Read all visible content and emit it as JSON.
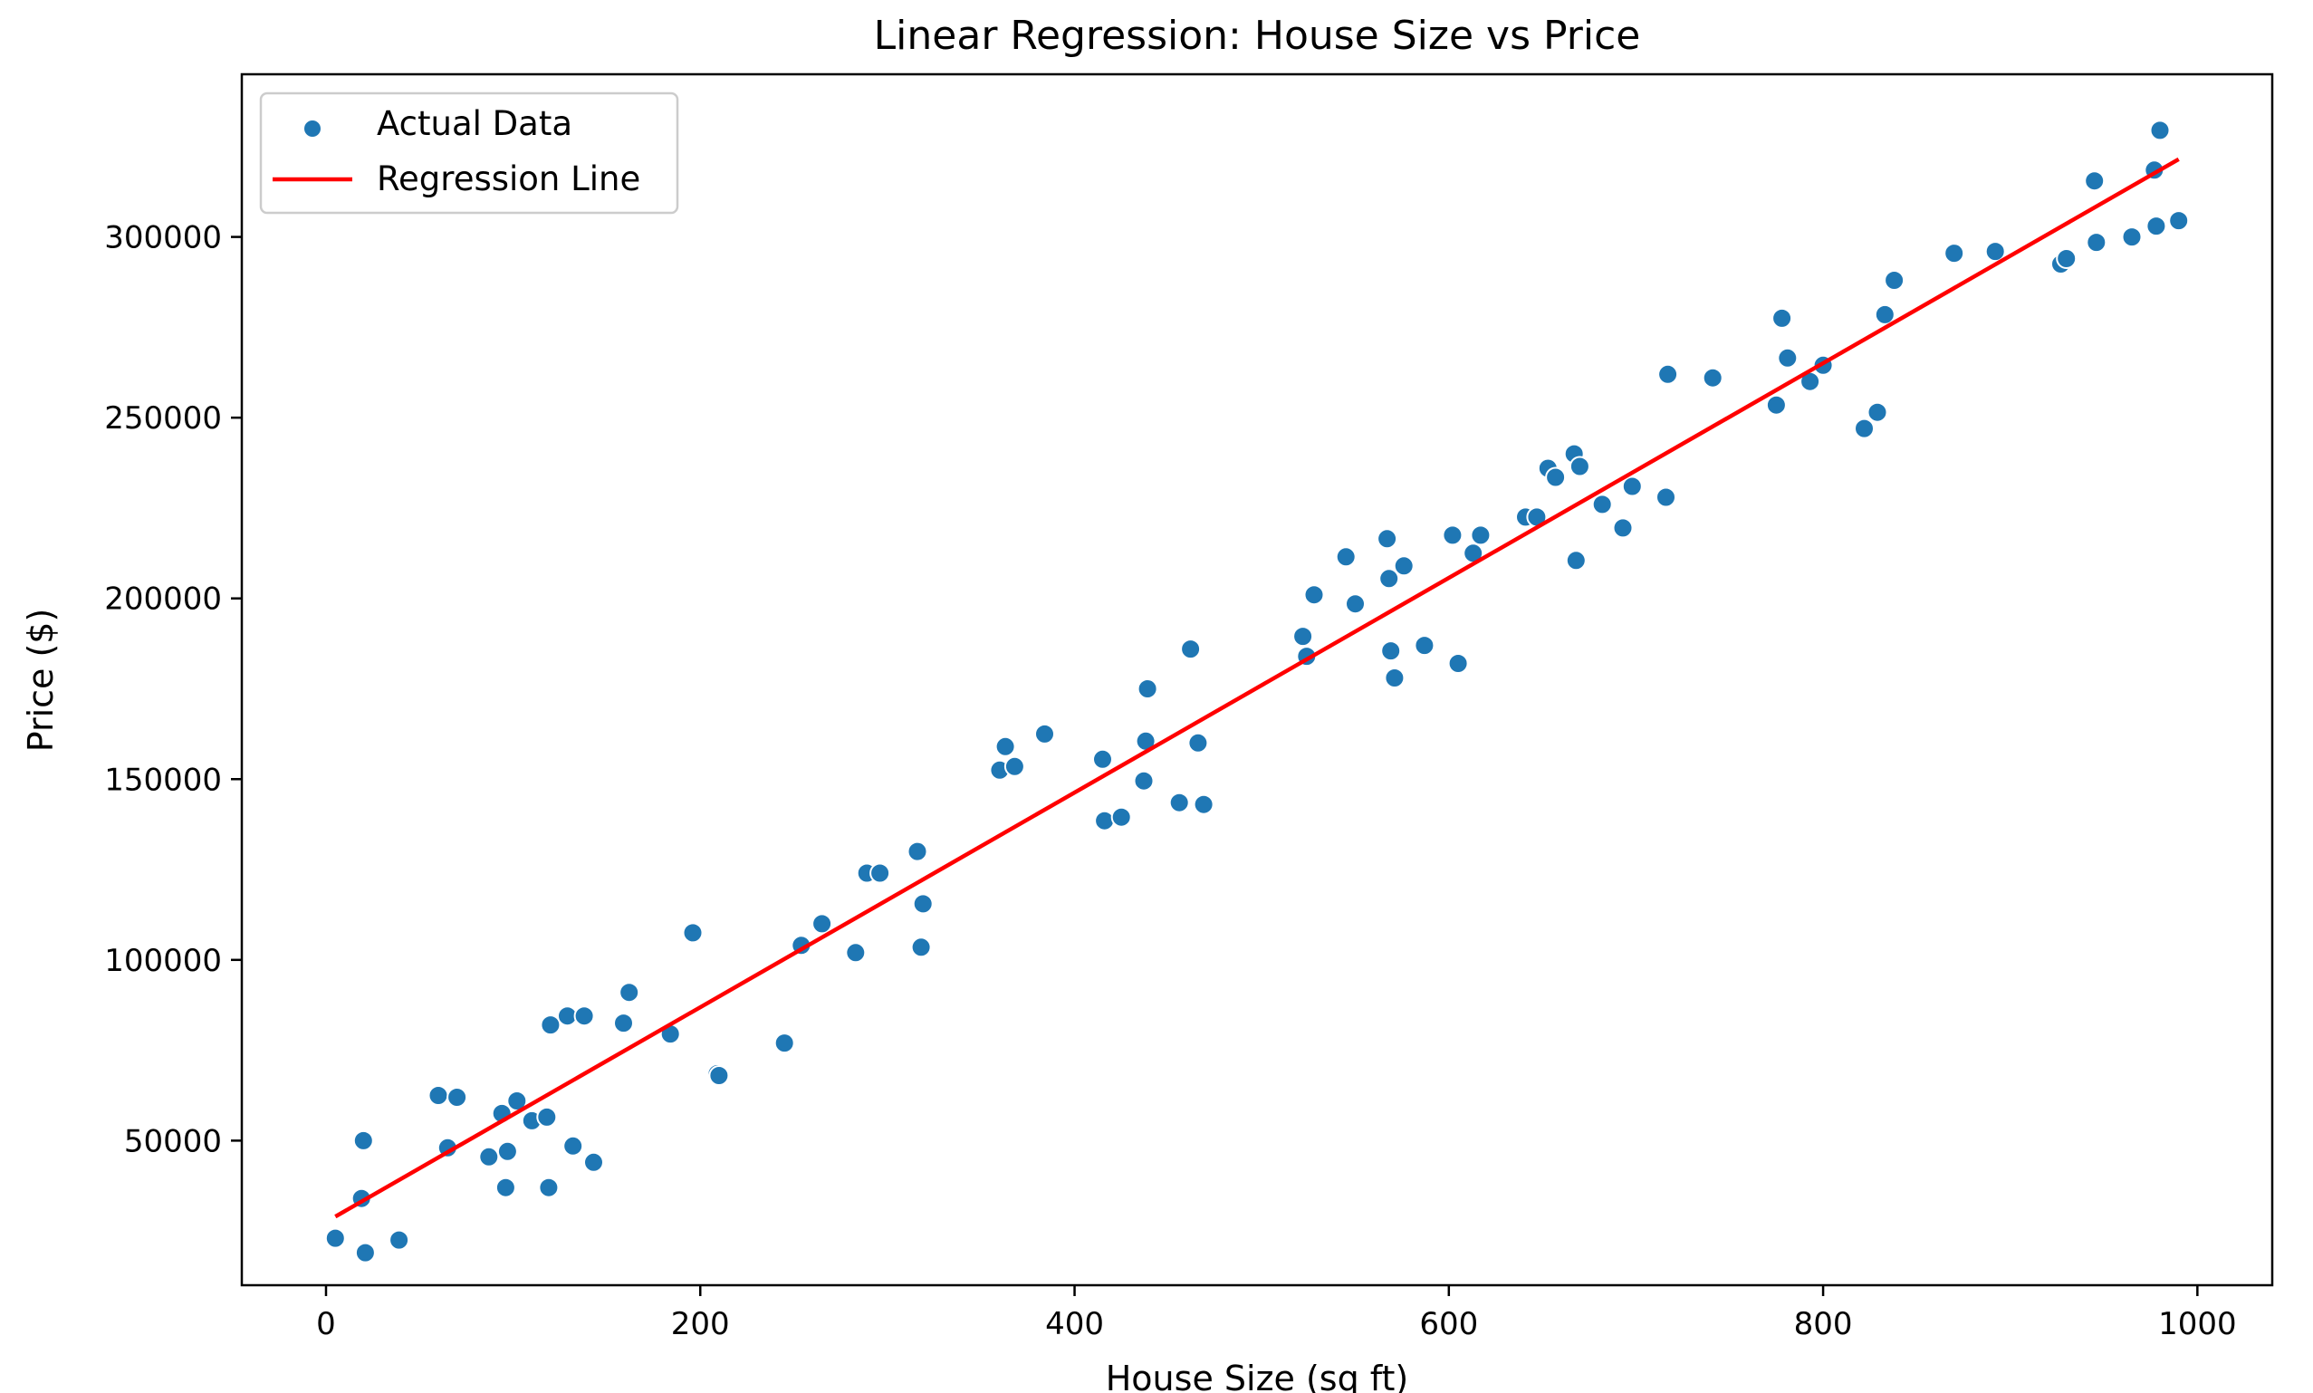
{
  "chart_data": {
    "type": "scatter",
    "title": "Linear Regression: House Size vs Price",
    "xlabel": "House Size (sq ft)",
    "ylabel": "Price ($)",
    "xlim": [
      -45,
      1040
    ],
    "ylim": [
      10000,
      345000
    ],
    "xticks": [
      0,
      200,
      400,
      600,
      800,
      1000
    ],
    "yticks": [
      50000,
      100000,
      150000,
      200000,
      250000,
      300000
    ],
    "grid": false,
    "legend": {
      "position": "top-left",
      "entries": [
        {
          "label": "Actual Data",
          "kind": "marker",
          "color": "#1f77b4"
        },
        {
          "label": "Regression Line",
          "kind": "line",
          "color": "#ff0000"
        }
      ]
    },
    "colors": {
      "scatter": "#1f77b4",
      "line": "#ff0000"
    },
    "series": [
      {
        "name": "Actual Data",
        "type": "scatter",
        "points": [
          [
            5,
            23000
          ],
          [
            20,
            50000
          ],
          [
            19,
            34000
          ],
          [
            21,
            19000
          ],
          [
            39,
            22500
          ],
          [
            60,
            62500
          ],
          [
            65,
            48000
          ],
          [
            70,
            62000
          ],
          [
            87,
            45500
          ],
          [
            94,
            57500
          ],
          [
            96,
            37000
          ],
          [
            97,
            47000
          ],
          [
            102,
            61000
          ],
          [
            110,
            55500
          ],
          [
            118,
            56500
          ],
          [
            119,
            37000
          ],
          [
            120,
            82000
          ],
          [
            129,
            84500
          ],
          [
            132,
            48500
          ],
          [
            138,
            84500
          ],
          [
            143,
            44000
          ],
          [
            159,
            82500
          ],
          [
            162,
            91000
          ],
          [
            184,
            79500
          ],
          [
            196,
            107500
          ],
          [
            209,
            68500
          ],
          [
            210,
            68000
          ],
          [
            245,
            77000
          ],
          [
            254,
            104000
          ],
          [
            265,
            110000
          ],
          [
            283,
            102000
          ],
          [
            289,
            124000
          ],
          [
            296,
            124000
          ],
          [
            316,
            130000
          ],
          [
            318,
            103500
          ],
          [
            319,
            115500
          ],
          [
            360,
            152500
          ],
          [
            363,
            159000
          ],
          [
            368,
            153500
          ],
          [
            384,
            162500
          ],
          [
            415,
            155500
          ],
          [
            416,
            138500
          ],
          [
            425,
            139500
          ],
          [
            437,
            149500
          ],
          [
            438,
            160500
          ],
          [
            439,
            175000
          ],
          [
            456,
            143500
          ],
          [
            462,
            186000
          ],
          [
            466,
            160000
          ],
          [
            469,
            143000
          ],
          [
            522,
            189500
          ],
          [
            524,
            184000
          ],
          [
            528,
            201000
          ],
          [
            545,
            211500
          ],
          [
            550,
            198500
          ],
          [
            567,
            216500
          ],
          [
            568,
            205500
          ],
          [
            569,
            185500
          ],
          [
            571,
            178000
          ],
          [
            576,
            209000
          ],
          [
            587,
            187000
          ],
          [
            602,
            217500
          ],
          [
            605,
            182000
          ],
          [
            613,
            212500
          ],
          [
            617,
            217500
          ],
          [
            641,
            222500
          ],
          [
            647,
            222500
          ],
          [
            653,
            236000
          ],
          [
            657,
            233500
          ],
          [
            667,
            240000
          ],
          [
            668,
            210500
          ],
          [
            670,
            236500
          ],
          [
            682,
            226000
          ],
          [
            693,
            219500
          ],
          [
            698,
            231000
          ],
          [
            716,
            228000
          ],
          [
            717,
            262000
          ],
          [
            741,
            261000
          ],
          [
            775,
            253500
          ],
          [
            778,
            277500
          ],
          [
            781,
            266500
          ],
          [
            793,
            260000
          ],
          [
            800,
            264500
          ],
          [
            822,
            247000
          ],
          [
            829,
            251500
          ],
          [
            833,
            278500
          ],
          [
            838,
            288000
          ],
          [
            870,
            295500
          ],
          [
            892,
            296000
          ],
          [
            927,
            292500
          ],
          [
            930,
            294000
          ],
          [
            945,
            315500
          ],
          [
            946,
            298500
          ],
          [
            965,
            300000
          ],
          [
            977,
            318500
          ],
          [
            978,
            303000
          ],
          [
            980,
            329500
          ],
          [
            990,
            304500
          ]
        ]
      },
      {
        "name": "Regression Line",
        "type": "line",
        "points": [
          [
            5,
            29000
          ],
          [
            990,
            321500
          ]
        ]
      }
    ]
  }
}
